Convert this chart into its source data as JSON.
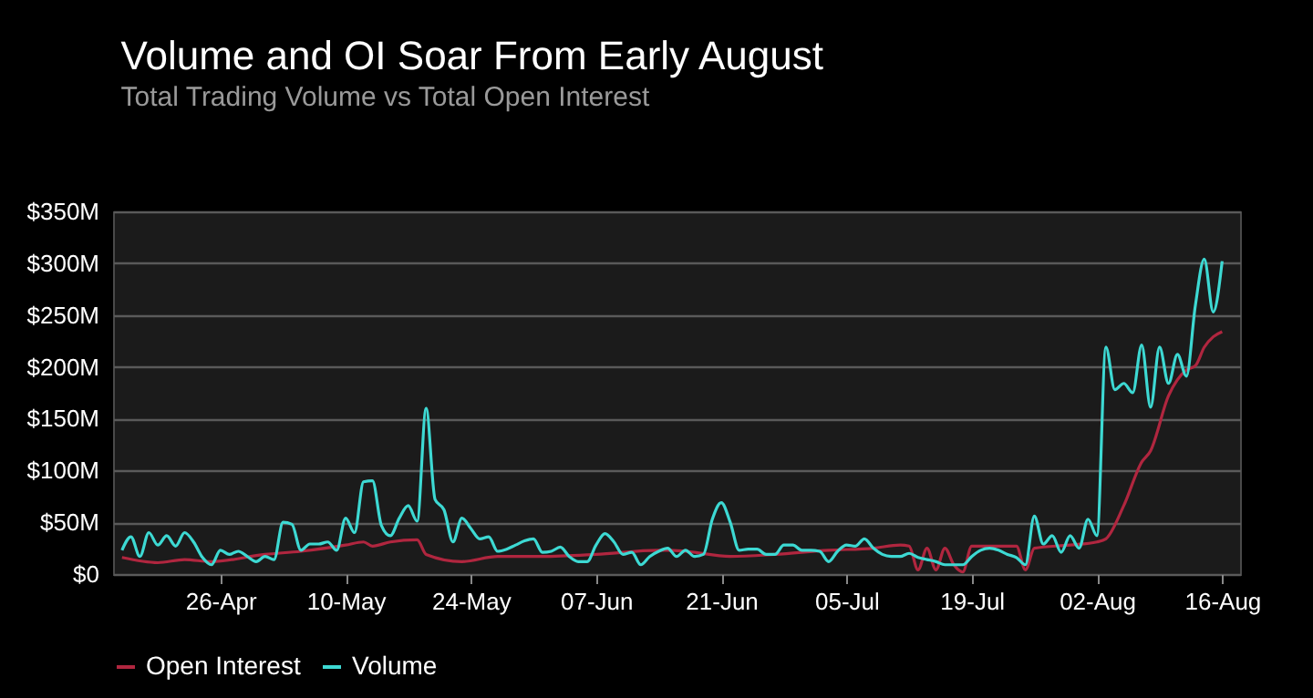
{
  "chart_data": {
    "type": "line",
    "title": "Volume and OI Soar From Early August",
    "subtitle": "Total Trading Volume vs Total Open Interest",
    "xlim": [
      "--04-14",
      "--08-18"
    ],
    "xticks": [
      {
        "value": "--04-26",
        "label": "26-Apr"
      },
      {
        "value": "--05-10",
        "label": "10-May"
      },
      {
        "value": "--05-24",
        "label": "24-May"
      },
      {
        "value": "--06-07",
        "label": "07-Jun"
      },
      {
        "value": "--06-21",
        "label": "21-Jun"
      },
      {
        "value": "--07-05",
        "label": "05-Jul"
      },
      {
        "value": "--07-19",
        "label": "19-Jul"
      },
      {
        "value": "--08-02",
        "label": "02-Aug"
      },
      {
        "value": "--08-16",
        "label": "16-Aug"
      }
    ],
    "ylim": [
      0,
      350
    ],
    "yticks": [
      {
        "value": 0,
        "label": "$0"
      },
      {
        "value": 50,
        "label": "$50M"
      },
      {
        "value": 100,
        "label": "$100M"
      },
      {
        "value": 150,
        "label": "$150M"
      },
      {
        "value": 200,
        "label": "$200M"
      },
      {
        "value": 250,
        "label": "$250M"
      },
      {
        "value": 300,
        "label": "$300M"
      },
      {
        "value": 350,
        "label": "$350M"
      }
    ],
    "grid": "y",
    "legend": "bottom",
    "marker": "none",
    "line_style": "solid",
    "series": [
      {
        "name": "Open Interest",
        "color": "#b0263f",
        "x": [
          "--04-15",
          "--04-19",
          "--04-22",
          "--04-25",
          "--05-01",
          "--05-05",
          "--05-10",
          "--05-12",
          "--05-13",
          "--05-15",
          "--05-18",
          "--05-19",
          "--05-23",
          "--05-27",
          "--06-01",
          "--06-07",
          "--06-14",
          "--06-15",
          "--06-17",
          "--06-22",
          "--06-27",
          "--07-03",
          "--07-08",
          "--07-11",
          "--07-12",
          "--07-13",
          "--07-14",
          "--07-15",
          "--07-16",
          "--07-17",
          "--07-18",
          "--07-19",
          "--07-21",
          "--07-24",
          "--07-25",
          "--07-26",
          "--07-30",
          "--08-02",
          "--08-03",
          "--08-05",
          "--08-07",
          "--08-08",
          "--08-10",
          "--08-12",
          "--08-13",
          "--08-14",
          "--08-15",
          "--08-16"
        ],
        "values": [
          16,
          11,
          14,
          12,
          19,
          22,
          28,
          31,
          27,
          31,
          33,
          19,
          12,
          17,
          17,
          19,
          23,
          23,
          22,
          17,
          19,
          23,
          25,
          28,
          27,
          4,
          25,
          4,
          25,
          9,
          2,
          27,
          27,
          27,
          4,
          25,
          28,
          31,
          34,
          66,
          108,
          119,
          172,
          197,
          201,
          219,
          229,
          234
        ]
      },
      {
        "name": "Volume",
        "color": "#3dd9d3",
        "x": [
          "--04-15",
          "--04-16",
          "--04-17",
          "--04-18",
          "--04-19",
          "--04-20",
          "--04-21",
          "--04-22",
          "--04-23",
          "--04-24",
          "--04-25",
          "--04-26",
          "--04-27",
          "--04-28",
          "--04-29",
          "--04-30",
          "--05-01",
          "--05-02",
          "--05-03",
          "--05-04",
          "--05-05",
          "--05-06",
          "--05-07",
          "--05-08",
          "--05-09",
          "--05-10",
          "--05-11",
          "--05-12",
          "--05-13",
          "--05-14",
          "--05-15",
          "--05-16",
          "--05-17",
          "--05-18",
          "--05-19",
          "--05-20",
          "--05-21",
          "--05-22",
          "--05-23",
          "--05-24",
          "--05-25",
          "--05-26",
          "--05-27",
          "--05-28",
          "--05-29",
          "--05-30",
          "--05-31",
          "--06-01",
          "--06-02",
          "--06-03",
          "--06-04",
          "--06-05",
          "--06-06",
          "--06-07",
          "--06-08",
          "--06-09",
          "--06-10",
          "--06-11",
          "--06-12",
          "--06-13",
          "--06-14",
          "--06-15",
          "--06-16",
          "--06-17",
          "--06-18",
          "--06-19",
          "--06-20",
          "--06-21",
          "--06-22",
          "--06-23",
          "--06-24",
          "--06-25",
          "--06-26",
          "--06-27",
          "--06-28",
          "--06-29",
          "--06-30",
          "--07-01",
          "--07-02",
          "--07-03",
          "--07-04",
          "--07-05",
          "--07-06",
          "--07-07",
          "--07-08",
          "--07-09",
          "--07-10",
          "--07-11",
          "--07-12",
          "--07-13",
          "--07-14",
          "--07-15",
          "--07-16",
          "--07-17",
          "--07-18",
          "--07-19",
          "--07-20",
          "--07-21",
          "--07-22",
          "--07-23",
          "--07-24",
          "--07-25",
          "--07-26",
          "--07-27",
          "--07-28",
          "--07-29",
          "--07-30",
          "--07-31",
          "--08-01",
          "--08-02",
          "--08-03",
          "--08-04",
          "--08-05",
          "--08-06",
          "--08-07",
          "--08-08",
          "--08-09",
          "--08-10",
          "--08-11",
          "--08-12",
          "--08-13",
          "--08-14",
          "--08-15",
          "--08-16"
        ],
        "values": [
          23,
          36,
          17,
          40,
          28,
          37,
          27,
          40,
          31,
          16,
          9,
          23,
          19,
          22,
          17,
          12,
          17,
          14,
          50,
          48,
          23,
          29,
          29,
          31,
          23,
          54,
          40,
          89,
          90,
          47,
          37,
          54,
          66,
          51,
          160,
          72,
          62,
          31,
          54,
          44,
          34,
          36,
          22,
          24,
          28,
          32,
          34,
          21,
          22,
          26,
          17,
          12,
          12,
          28,
          39,
          31,
          19,
          21,
          9,
          17,
          22,
          25,
          17,
          23,
          17,
          19,
          53,
          69,
          50,
          23,
          24,
          24,
          19,
          19,
          28,
          28,
          23,
          23,
          22,
          12,
          22,
          28,
          27,
          34,
          25,
          19,
          17,
          17,
          20,
          16,
          14,
          12,
          9,
          9,
          9,
          17,
          23,
          25,
          23,
          19,
          16,
          9,
          56,
          29,
          37,
          21,
          37,
          25,
          53,
          37,
          219,
          178,
          184,
          175,
          221,
          161,
          219,
          184,
          212,
          191,
          259,
          304,
          253,
          302
        ]
      }
    ]
  }
}
